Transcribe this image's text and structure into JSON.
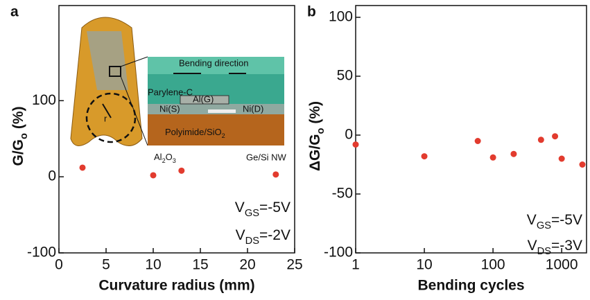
{
  "chart_data": [
    {
      "type": "scatter",
      "panel_label": "a",
      "x_label": "Curvature radius (mm)",
      "y_label": [
        "G/G",
        {
          "sub": "o"
        },
        " (%)"
      ],
      "x": [
        2.5,
        10,
        13,
        23
      ],
      "values": [
        12,
        2,
        8,
        3
      ],
      "color": "#e23b2e",
      "xlim": [
        0,
        25
      ],
      "xticks": [
        0,
        5,
        10,
        15,
        20,
        25
      ],
      "ylim": [
        -100,
        225
      ],
      "yticks": [
        -100,
        0,
        100
      ],
      "annotations": [
        [
          "V",
          {
            "sub": "GS"
          },
          "=-5V"
        ],
        [
          "V",
          {
            "sub": "DS"
          },
          "=-2V"
        ]
      ],
      "inset": {
        "bending": "Bending direction",
        "parylene": "Parylene-C",
        "gate": "Al(G)",
        "source": "Ni(S)",
        "drain": "Ni(D)",
        "substrate": [
          "Polyimide/SiO",
          {
            "sub": "2"
          }
        ],
        "oxide": [
          "Al",
          {
            "sub": "2"
          },
          "O",
          {
            "sub": "3"
          }
        ],
        "wire": "Ge/Si NW",
        "radius": "r"
      }
    },
    {
      "type": "scatter",
      "panel_label": "b",
      "x_label": "Bending cycles",
      "y_label": [
        "ΔG/G",
        {
          "sub": "o"
        },
        " (%)"
      ],
      "x": [
        1,
        10,
        60,
        100,
        200,
        500,
        800,
        1000,
        2000
      ],
      "values": [
        -8,
        -18,
        -5,
        -19,
        -16,
        -4,
        -1,
        -20,
        -25
      ],
      "color": "#e23b2e",
      "xlog": true,
      "xlim": [
        1,
        2300
      ],
      "xticks": [
        1,
        10,
        100,
        1000
      ],
      "ylim": [
        -100,
        110
      ],
      "yticks": [
        -100,
        -50,
        0,
        50,
        100
      ],
      "annotations": [
        [
          "V",
          {
            "sub": "GS"
          },
          "=-5V"
        ],
        [
          "V",
          {
            "sub": "DS"
          },
          "=-3V"
        ]
      ]
    }
  ]
}
